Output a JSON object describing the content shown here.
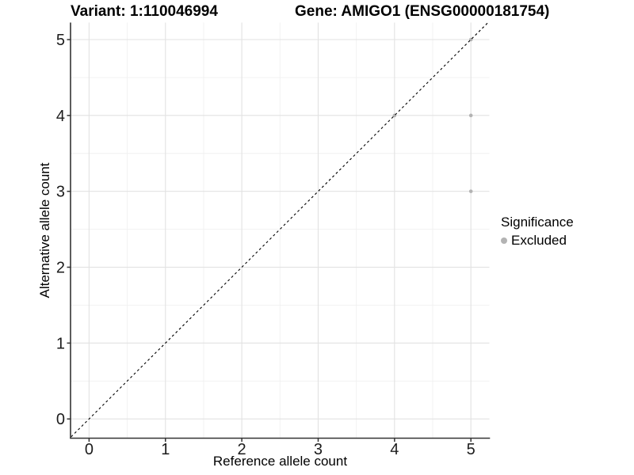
{
  "chart_data": {
    "type": "scatter",
    "title_left": "Variant: 1:110046994",
    "title_right": "Gene: AMIGO1 (ENSG00000181754)",
    "xlabel": "Reference allele count",
    "ylabel": "Alternative allele count",
    "xlim": [
      -0.25,
      5.25
    ],
    "ylim": [
      -0.25,
      5.25
    ],
    "xticks": [
      0,
      1,
      2,
      3,
      4,
      5
    ],
    "yticks": [
      0,
      1,
      2,
      3,
      4,
      5
    ],
    "x_minor": [
      0.5,
      1.5,
      2.5,
      3.5,
      4.5
    ],
    "y_minor": [
      0.5,
      1.5,
      2.5,
      3.5,
      4.5
    ],
    "grid": "major+minor",
    "identity_line": {
      "slope": 1,
      "intercept": 0,
      "style": "dashed",
      "color": "#000000"
    },
    "series": [
      {
        "name": "Excluded",
        "color": "#b3b3b3",
        "points": [
          [
            4,
            4
          ],
          [
            5,
            3
          ],
          [
            5,
            4
          ],
          [
            5,
            5
          ]
        ]
      }
    ],
    "legend": {
      "title": "Significance",
      "position": "right",
      "items": [
        {
          "label": "Excluded",
          "color": "#b3b3b3"
        }
      ]
    },
    "colors": {
      "grid_major": "#e2e2e2",
      "grid_minor": "#f0f0f0",
      "axis_line": "#333333",
      "tick_label": "#1c1c1c",
      "background": "#ffffff"
    }
  }
}
